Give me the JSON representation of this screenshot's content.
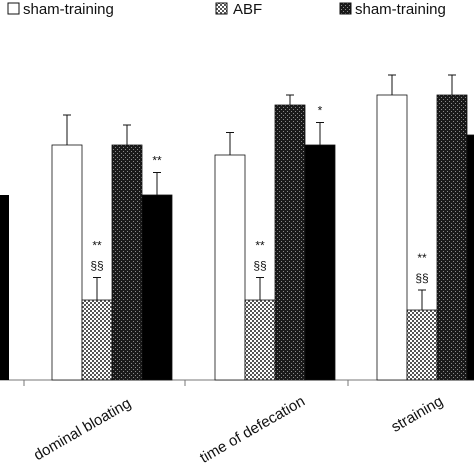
{
  "chart_data": {
    "type": "bar",
    "title": "",
    "xlabel": "",
    "ylabel": "",
    "ylim": [
      0,
      6
    ],
    "grid": false,
    "legend_position": "top",
    "categories": [
      "abdominal bloating",
      "time of defecation",
      "straining"
    ],
    "series": [
      {
        "name": "sham-training",
        "fill": "white",
        "values": [
          4.7,
          4.5,
          5.7
        ],
        "errors": [
          0.6,
          0.45,
          0.4
        ]
      },
      {
        "name": "ABF",
        "fill": "checker",
        "values": [
          1.6,
          1.6,
          1.4
        ],
        "errors": [
          0.45,
          0.45,
          0.4
        ]
      },
      {
        "name": "sham-training",
        "fill": "dark",
        "values": [
          4.7,
          5.5,
          5.7
        ],
        "errors": [
          0.4,
          0.2,
          0.4
        ]
      },
      {
        "name": "",
        "fill": "black",
        "values": [
          3.7,
          4.7,
          4.9
        ],
        "errors": [
          0.45,
          0.45,
          0.45
        ]
      }
    ],
    "partial_left_bar_value": 3.7,
    "annotations": [
      {
        "category": 0,
        "series": 1,
        "lines": [
          "**",
          "§§"
        ]
      },
      {
        "category": 0,
        "series": 3,
        "lines": [
          "**"
        ]
      },
      {
        "category": 1,
        "series": 1,
        "lines": [
          "**",
          "§§"
        ]
      },
      {
        "category": 1,
        "series": 3,
        "lines": [
          "*"
        ]
      },
      {
        "category": 2,
        "series": 1,
        "lines": [
          "**",
          "§§"
        ]
      }
    ],
    "tick_labels": {
      "abdominal_bloating": "dominal bloating",
      "time_of_defecation": "time of defecation",
      "straining": "straining"
    }
  },
  "colors": {
    "white_fill": "#ffffff",
    "checker_fill": "#7a7a7a",
    "dark_fill": "#2a2a2a",
    "black_fill": "#000000",
    "axis": "#777777"
  }
}
